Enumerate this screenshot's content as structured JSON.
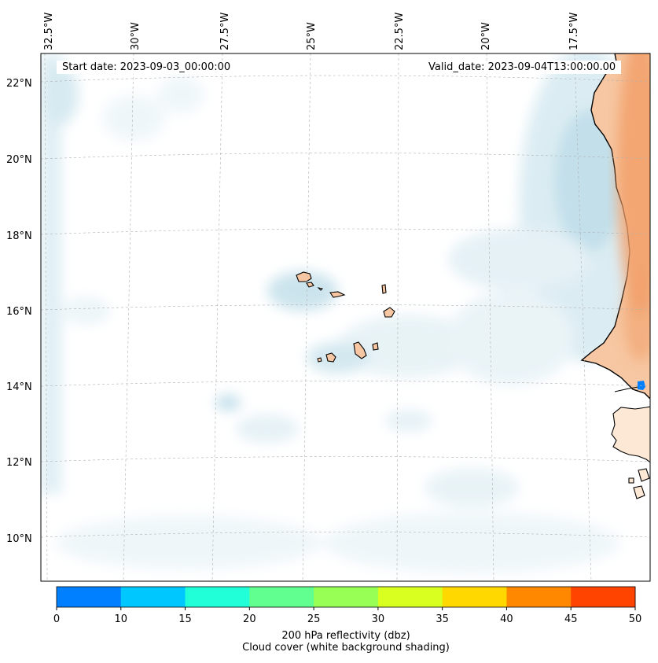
{
  "map": {
    "start_date_text": "Start date: 2023-09-03_00:00:00",
    "valid_date_text": "Valid_date: 2023-09-04T13:00:00.00",
    "longitude_labels": [
      "32.5°W",
      "30°W",
      "27.5°W",
      "25°W",
      "22.5°W",
      "20°W",
      "17.5°W"
    ],
    "latitude_labels": [
      "22°N",
      "20°N",
      "18°N",
      "16°N",
      "14°N",
      "12°N",
      "10°N"
    ],
    "colors": {
      "land": "#f7c9a4",
      "land_warm": "#f3a873",
      "cloud_light": "#eaf4f8",
      "cloud_mid": "#cfe6ee",
      "cloud_dark": "#b9dbe7",
      "coastline": "#000000",
      "reflectivity_echo": "#0080ff"
    }
  },
  "colorbar": {
    "tick_labels": [
      "0",
      "10",
      "15",
      "20",
      "25",
      "30",
      "35",
      "40",
      "45",
      "50"
    ],
    "segment_colors": [
      "#0080ff",
      "#00c8ff",
      "#20ffd8",
      "#60ff90",
      "#98ff55",
      "#d8ff20",
      "#ffd800",
      "#ff8800",
      "#ff4400"
    ],
    "title_line1": "200 hPa reflectivity (dbz)",
    "title_line2": "Cloud cover (white background shading)"
  }
}
